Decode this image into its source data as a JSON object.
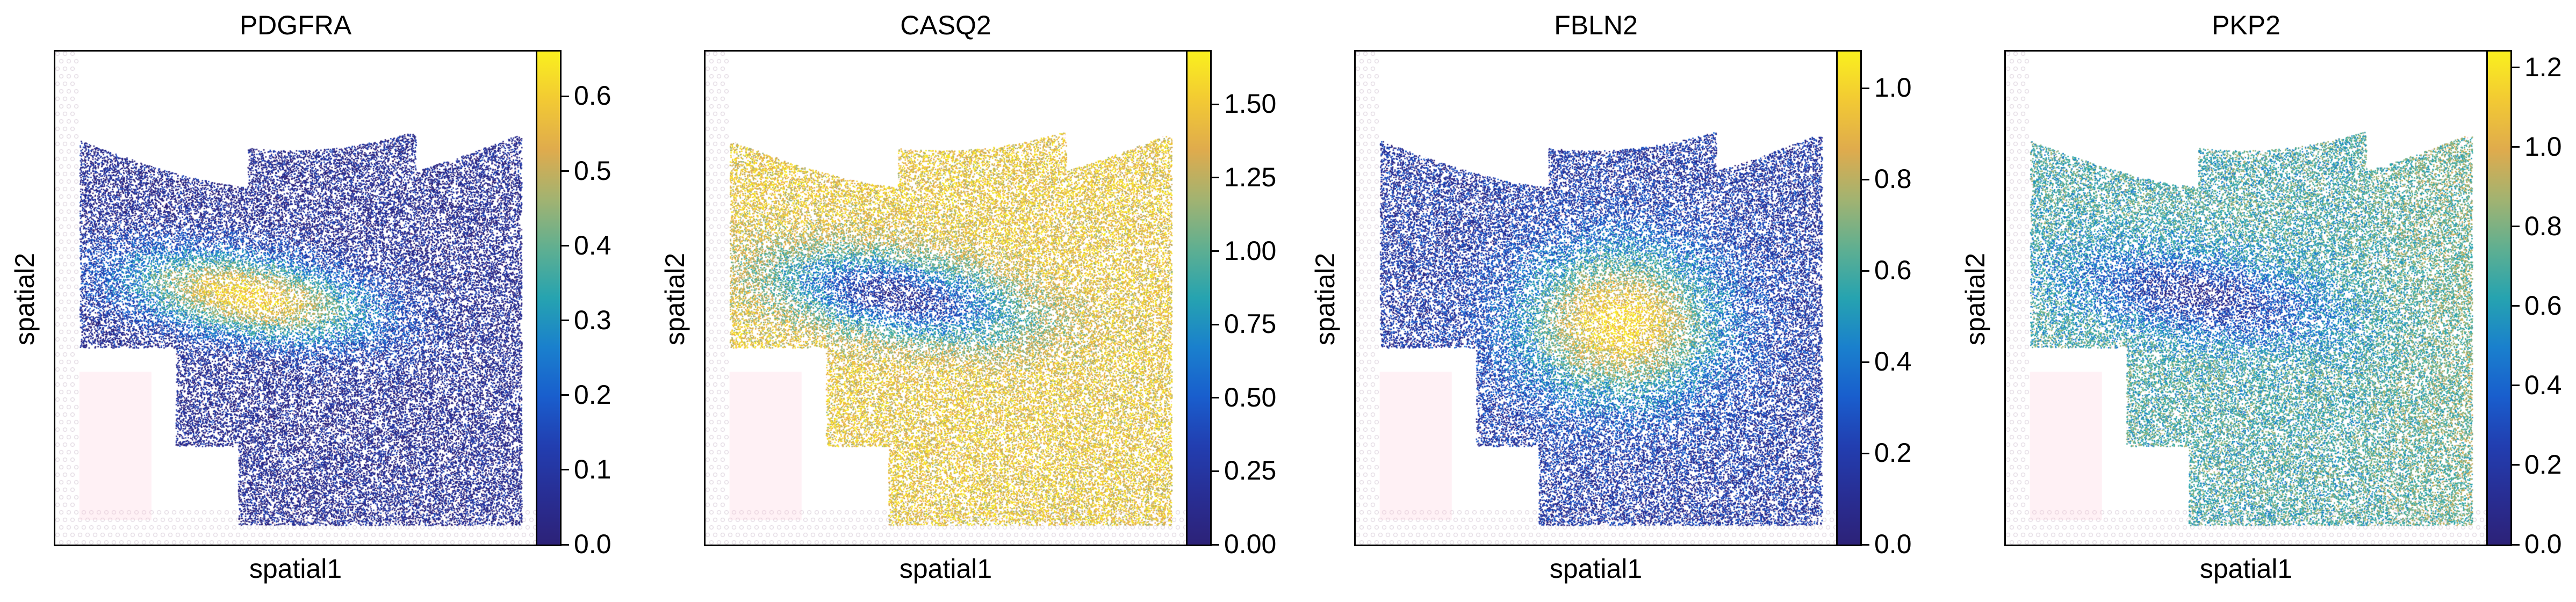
{
  "chart_data": [
    {
      "type": "scatter",
      "title": "PDGFRA",
      "xlabel": "spatial1",
      "ylabel": "spatial2",
      "colorbar": {
        "min": 0.0,
        "max": 0.66,
        "ticks": [
          "0.0",
          "0.1",
          "0.2",
          "0.3",
          "0.4",
          "0.5",
          "0.6"
        ],
        "tick_values": [
          0.0,
          0.1,
          0.2,
          0.3,
          0.4,
          0.5,
          0.6
        ]
      },
      "colormap": "plasma-like (dark blue to yellow)",
      "pattern": "mostly low expression; high band in middle-left region"
    },
    {
      "type": "scatter",
      "title": "CASQ2",
      "xlabel": "spatial1",
      "ylabel": "spatial2",
      "colorbar": {
        "min": 0.0,
        "max": 1.68,
        "ticks": [
          "0.00",
          "0.25",
          "0.50",
          "0.75",
          "1.00",
          "1.25",
          "1.50"
        ],
        "tick_values": [
          0.0,
          0.25,
          0.5,
          0.75,
          1.0,
          1.25,
          1.5
        ]
      },
      "colormap": "plasma-like (dark blue to yellow)",
      "pattern": "mostly high expression; low band in middle-left region"
    },
    {
      "type": "scatter",
      "title": "FBLN2",
      "xlabel": "spatial1",
      "ylabel": "spatial2",
      "colorbar": {
        "min": 0.0,
        "max": 1.08,
        "ticks": [
          "0.0",
          "0.2",
          "0.4",
          "0.6",
          "0.8",
          "1.0"
        ],
        "tick_values": [
          0.0,
          0.2,
          0.4,
          0.6,
          0.8,
          1.0
        ]
      },
      "colormap": "plasma-like (dark blue to yellow)",
      "pattern": "low expression top and bottom; high expression central region"
    },
    {
      "type": "scatter",
      "title": "PKP2",
      "xlabel": "spatial1",
      "ylabel": "spatial2",
      "colorbar": {
        "min": 0.0,
        "max": 1.24,
        "ticks": [
          "0.0",
          "0.2",
          "0.4",
          "0.6",
          "0.8",
          "1.0",
          "1.2"
        ],
        "tick_values": [
          0.0,
          0.2,
          0.4,
          0.6,
          0.8,
          1.0,
          1.2
        ]
      },
      "colormap": "plasma-like (dark blue to yellow)",
      "pattern": "moderate expression; low band in middle, high at right"
    }
  ]
}
